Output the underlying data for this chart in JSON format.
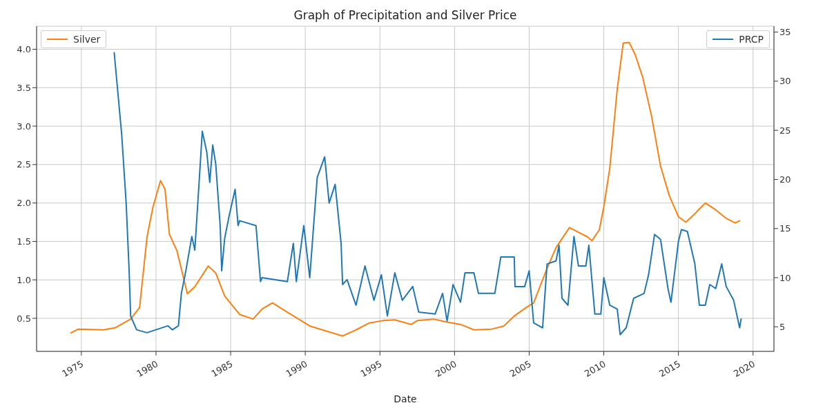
{
  "chart_data": {
    "type": "line",
    "title": "Graph of Precipitation and Silver Price",
    "xlabel": "Date",
    "xlim": [
      1972.0,
      2021.4
    ],
    "xticks": [
      1975,
      1980,
      1985,
      1990,
      1995,
      2000,
      2005,
      2010,
      2015,
      2020
    ],
    "ylim": [
      0.07,
      4.3
    ],
    "yticks": [
      {
        "value": 0.5,
        "label": "0.5"
      },
      {
        "value": 1,
        "label": "1.0"
      },
      {
        "value": 1.5,
        "label": "1.5"
      },
      {
        "value": 2,
        "label": "2.0"
      },
      {
        "value": 2.5,
        "label": "2.5"
      },
      {
        "value": 3,
        "label": "3.0"
      },
      {
        "value": 3.5,
        "label": "3.5"
      },
      {
        "value": 4,
        "label": "4.0"
      }
    ],
    "y2lim": [
      2.5,
      35.6
    ],
    "y2ticks": [
      5,
      10,
      15,
      20,
      25,
      30,
      35
    ],
    "grid": true,
    "legend": "top",
    "marker": "none",
    "line_style": "solid",
    "series": [
      {
        "name": "Silver",
        "color": "#ff7f0e",
        "axis": "y",
        "x": [
          1974.3,
          1974.8,
          1976.5,
          1977.3,
          1978.3,
          1978.9,
          1979.4,
          1979.8,
          1980.3,
          1980.6,
          1980.9,
          1981.4,
          1982.1,
          1982.6,
          1983.5,
          1984.0,
          1984.6,
          1985.6,
          1986.5,
          1987.1,
          1987.8,
          1988.8,
          1990.3,
          1992.5,
          1993.4,
          1994.3,
          1995.2,
          1996.0,
          1997.1,
          1997.5,
          1998.6,
          1999.5,
          2000.4,
          2001.3,
          2002.5,
          2003.3,
          2004.0,
          2004.8,
          2005.3,
          2006.2,
          2006.8,
          2007.7,
          2008.3,
          2008.9,
          2009.2,
          2009.7,
          2010.0,
          2010.4,
          2010.9,
          2011.3,
          2011.7,
          2012.1,
          2012.6,
          2013.2,
          2013.8,
          2014.4,
          2015.0,
          2015.5,
          2016.1,
          2016.8,
          2017.5,
          2018.2,
          2018.8,
          2019.1
        ],
        "values": [
          0.31,
          0.36,
          0.35,
          0.38,
          0.49,
          0.64,
          1.56,
          1.95,
          2.29,
          2.18,
          1.59,
          1.38,
          0.82,
          0.91,
          1.18,
          1.09,
          0.79,
          0.55,
          0.49,
          0.62,
          0.7,
          0.58,
          0.4,
          0.27,
          0.35,
          0.44,
          0.47,
          0.48,
          0.42,
          0.47,
          0.49,
          0.45,
          0.42,
          0.35,
          0.36,
          0.4,
          0.53,
          0.64,
          0.7,
          1.15,
          1.42,
          1.68,
          1.62,
          1.56,
          1.51,
          1.65,
          1.95,
          2.45,
          3.48,
          4.08,
          4.09,
          3.93,
          3.64,
          3.13,
          2.48,
          2.09,
          1.82,
          1.75,
          1.86,
          2.0,
          1.91,
          1.8,
          1.74,
          1.77
        ]
      },
      {
        "name": "PRCP",
        "color": "#1f77b4",
        "axis": "y2",
        "x": [
          1977.2,
          1977.7,
          1978.0,
          1978.2,
          1978.3,
          1978.7,
          1979.4,
          1980.8,
          1981.1,
          1981.5,
          1981.7,
          1982.0,
          1982.4,
          1982.6,
          1982.9,
          1983.1,
          1983.4,
          1983.6,
          1983.8,
          1984.0,
          1984.3,
          1984.4,
          1984.6,
          1984.9,
          1985.3,
          1985.5,
          1985.6,
          1986.7,
          1987.0,
          1987.1,
          1988.8,
          1989.2,
          1989.4,
          1989.9,
          1990.3,
          1990.8,
          1991.3,
          1991.6,
          1992.0,
          1992.4,
          1992.5,
          1992.8,
          1993.4,
          1994.0,
          1994.6,
          1995.1,
          1995.5,
          1996.0,
          1996.5,
          1997.2,
          1997.6,
          1998.7,
          1999.2,
          1999.5,
          1999.9,
          2000.4,
          2000.7,
          2001.3,
          2001.6,
          2002.7,
          2003.1,
          2004.0,
          2004.05,
          2004.7,
          2005.0,
          2005.3,
          2005.9,
          2006.2,
          2006.8,
          2007.0,
          2007.2,
          2007.6,
          2008.0,
          2008.3,
          2008.8,
          2009.0,
          2009.4,
          2009.8,
          2010.0,
          2010.4,
          2010.9,
          2011.1,
          2011.5,
          2012.0,
          2012.7,
          2013.0,
          2013.4,
          2013.8,
          2014.3,
          2014.5,
          2015.0,
          2015.2,
          2015.6,
          2016.1,
          2016.4,
          2016.8,
          2017.1,
          2017.5,
          2017.9,
          2018.2,
          2018.7,
          2019.0,
          2019.1,
          2019.2
        ],
        "values": [
          32.9,
          24.6,
          17.6,
          10.7,
          6.1,
          4.7,
          4.4,
          5.1,
          4.7,
          5.1,
          8.4,
          10.7,
          14.2,
          12.8,
          20.0,
          24.9,
          22.8,
          19.7,
          23.5,
          21.6,
          15.3,
          10.7,
          14.0,
          16.3,
          19.0,
          15.3,
          15.8,
          15.3,
          9.6,
          10.0,
          9.6,
          13.5,
          9.6,
          15.3,
          10.0,
          20.2,
          22.3,
          17.6,
          19.5,
          13.5,
          9.3,
          9.8,
          7.2,
          11.2,
          7.7,
          10.3,
          6.1,
          10.5,
          7.7,
          9.1,
          6.5,
          6.3,
          8.4,
          5.6,
          9.3,
          7.5,
          10.5,
          10.5,
          8.4,
          8.4,
          12.1,
          12.1,
          9.1,
          9.1,
          10.7,
          5.4,
          4.9,
          11.4,
          11.7,
          13.3,
          7.9,
          7.2,
          14.2,
          11.2,
          11.2,
          13.3,
          6.3,
          6.3,
          10.0,
          7.2,
          6.8,
          4.2,
          4.9,
          7.9,
          8.4,
          10.3,
          14.4,
          13.9,
          8.9,
          7.5,
          13.7,
          14.9,
          14.7,
          11.4,
          7.2,
          7.2,
          9.3,
          8.9,
          11.4,
          9.1,
          7.7,
          5.6,
          4.9,
          5.8
        ]
      }
    ]
  }
}
